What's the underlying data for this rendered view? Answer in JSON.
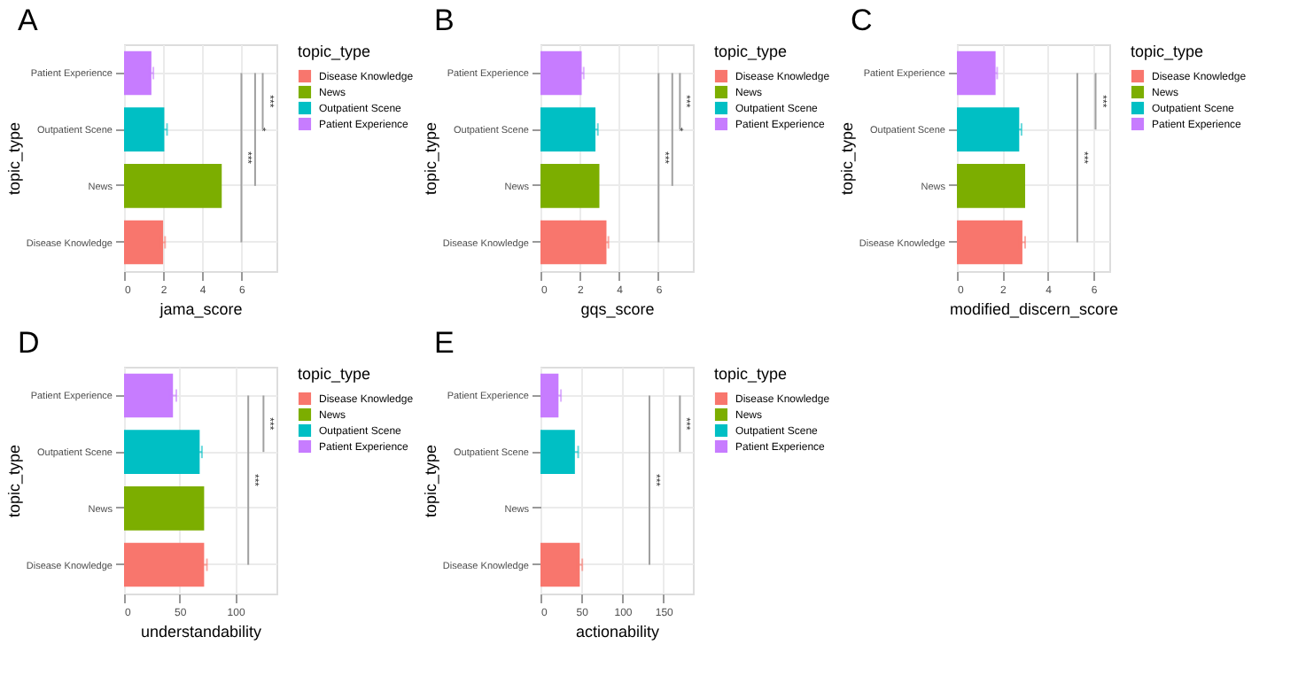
{
  "chart_data": [
    {
      "type": "bar",
      "orientation": "horizontal",
      "title": "A",
      "xlabel": "jama_score",
      "ylabel": "topic_type",
      "legend_title": "topic_type",
      "categories": [
        "Patient Experience",
        "Outpatient Scene",
        "News",
        "Disease Knowledge"
      ],
      "xlim": [
        0,
        7.8
      ],
      "xticks": [
        0,
        2,
        4,
        6
      ],
      "grid": true,
      "legend": "right",
      "annotations": [
        "***",
        "*",
        "***"
      ],
      "series": [
        {
          "name": "Disease Knowledge",
          "color": "#f8766d",
          "values": [
            null,
            null,
            null,
            2.0
          ],
          "errors": [
            null,
            null,
            null,
            0.1
          ]
        },
        {
          "name": "News",
          "color": "#7cae00",
          "values": [
            null,
            null,
            5.0,
            null
          ]
        },
        {
          "name": "Outpatient Scene",
          "color": "#00bfc4",
          "values": [
            null,
            2.06,
            null,
            null
          ],
          "errors": [
            null,
            0.14,
            null,
            null
          ]
        },
        {
          "name": "Patient Experience",
          "color": "#c77cff",
          "values": [
            1.4,
            null,
            null,
            null
          ],
          "errors": [
            0.1,
            null,
            null,
            null
          ]
        }
      ]
    },
    {
      "type": "bar",
      "orientation": "horizontal",
      "title": "B",
      "xlabel": "gqs_score",
      "ylabel": "topic_type",
      "legend_title": "topic_type",
      "categories": [
        "Patient Experience",
        "Outpatient Scene",
        "News",
        "Disease Knowledge"
      ],
      "xlim": [
        0,
        7.76
      ],
      "xticks": [
        0,
        2,
        4,
        6
      ],
      "grid": true,
      "legend": "right",
      "annotations": [
        "***",
        "*",
        "***"
      ],
      "series": [
        {
          "name": "Disease Knowledge",
          "color": "#f8766d",
          "values": [
            null,
            null,
            null,
            3.36
          ],
          "errors": [
            null,
            null,
            null,
            0.1
          ]
        },
        {
          "name": "News",
          "color": "#7cae00",
          "values": [
            null,
            null,
            3.0,
            null
          ]
        },
        {
          "name": "Outpatient Scene",
          "color": "#00bfc4",
          "values": [
            null,
            2.8,
            null,
            null
          ],
          "errors": [
            null,
            0.12,
            null,
            null
          ]
        },
        {
          "name": "Patient Experience",
          "color": "#c77cff",
          "values": [
            2.1,
            null,
            null,
            null
          ],
          "errors": [
            0.1,
            null,
            null,
            null
          ]
        }
      ]
    },
    {
      "type": "bar",
      "orientation": "horizontal",
      "title": "C",
      "xlabel": "modified_discern_score",
      "ylabel": "topic_type",
      "legend_title": "topic_type",
      "categories": [
        "Patient Experience",
        "Outpatient Scene",
        "News",
        "Disease Knowledge"
      ],
      "xlim": [
        0,
        6.7
      ],
      "xticks": [
        0,
        2,
        4,
        6
      ],
      "grid": true,
      "legend": "right",
      "annotations": [
        "***",
        "***"
      ],
      "series": [
        {
          "name": "Disease Knowledge",
          "color": "#f8766d",
          "values": [
            null,
            null,
            null,
            2.88
          ],
          "errors": [
            null,
            null,
            null,
            0.12
          ]
        },
        {
          "name": "News",
          "color": "#7cae00",
          "values": [
            null,
            null,
            3.0,
            null
          ]
        },
        {
          "name": "Outpatient Scene",
          "color": "#00bfc4",
          "values": [
            null,
            2.74,
            null,
            null
          ],
          "errors": [
            null,
            0.1,
            null,
            null
          ]
        },
        {
          "name": "Patient Experience",
          "color": "#c77cff",
          "values": [
            1.7,
            null,
            null,
            null
          ],
          "errors": [
            0.07,
            null,
            null,
            null
          ]
        }
      ]
    },
    {
      "type": "bar",
      "orientation": "horizontal",
      "title": "D",
      "xlabel": "understandability",
      "ylabel": "topic_type",
      "legend_title": "topic_type",
      "categories": [
        "Patient Experience",
        "Outpatient Scene",
        "News",
        "Disease Knowledge"
      ],
      "xlim": [
        0,
        137
      ],
      "xticks": [
        0,
        50,
        100
      ],
      "grid": true,
      "legend": "right",
      "annotations": [
        "***",
        "***"
      ],
      "series": [
        {
          "name": "Disease Knowledge",
          "color": "#f8766d",
          "values": [
            null,
            null,
            null,
            72
          ],
          "errors": [
            null,
            null,
            null,
            2.5
          ]
        },
        {
          "name": "News",
          "color": "#7cae00",
          "values": [
            null,
            null,
            72,
            null
          ]
        },
        {
          "name": "Outpatient Scene",
          "color": "#00bfc4",
          "values": [
            null,
            68,
            null,
            null
          ],
          "errors": [
            null,
            2,
            null,
            null
          ]
        },
        {
          "name": "Patient Experience",
          "color": "#c77cff",
          "values": [
            44,
            null,
            null,
            null
          ],
          "errors": [
            3,
            null,
            null,
            null
          ]
        }
      ]
    },
    {
      "type": "bar",
      "orientation": "horizontal",
      "title": "E",
      "xlabel": "actionability",
      "ylabel": "topic_type",
      "legend_title": "topic_type",
      "categories": [
        "Patient Experience",
        "Outpatient Scene",
        "News",
        "Disease Knowledge"
      ],
      "xlim": [
        0,
        186
      ],
      "xticks": [
        0,
        50,
        100,
        150
      ],
      "grid": true,
      "legend": "right",
      "annotations": [
        "***",
        "***"
      ],
      "series": [
        {
          "name": "Disease Knowledge",
          "color": "#f8766d",
          "values": [
            null,
            null,
            null,
            48
          ],
          "errors": [
            null,
            null,
            null,
            3
          ]
        },
        {
          "name": "News",
          "color": "#7cae00",
          "values": [
            null,
            null,
            null,
            null
          ]
        },
        {
          "name": "Outpatient Scene",
          "color": "#00bfc4",
          "values": [
            null,
            42,
            null,
            null
          ],
          "errors": [
            null,
            4,
            null,
            null
          ]
        },
        {
          "name": "Patient Experience",
          "color": "#c77cff",
          "values": [
            22,
            null,
            null,
            null
          ],
          "errors": [
            3,
            null,
            null,
            null
          ]
        }
      ]
    }
  ]
}
